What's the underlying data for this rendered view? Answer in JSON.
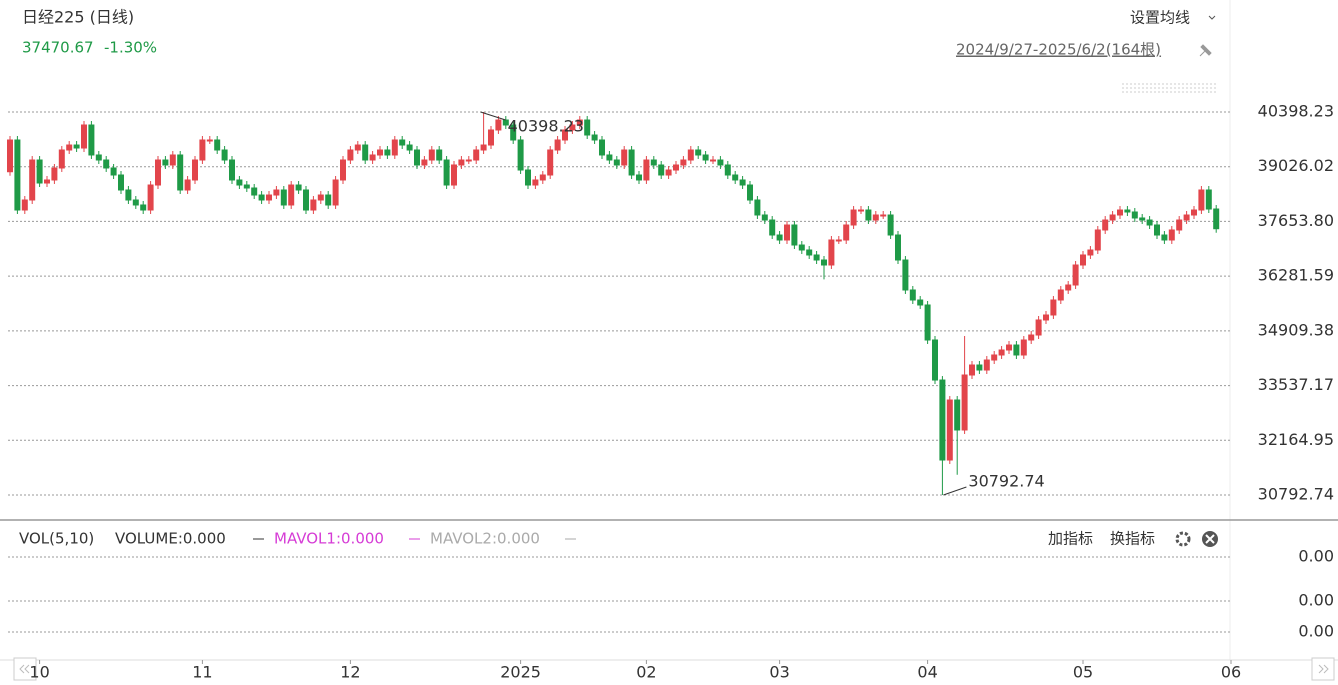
{
  "header": {
    "title": "日经225 (日线)",
    "price": "37470.67",
    "change": "-1.30%",
    "ma_button": "设置均线",
    "range": "2024/9/27-2025/6/2(164根)"
  },
  "chart_data": {
    "type": "candlestick",
    "up_color": "#e2454b",
    "down_color": "#1f9a47",
    "grid": true,
    "open": [
      38900,
      39696,
      37940,
      38191,
      39194,
      38617,
      38693,
      38994,
      39445,
      39570,
      39495,
      40072,
      39320,
      39194,
      38994,
      38818,
      38442,
      38191,
      38066,
      37940,
      38567,
      39194,
      39069,
      39320,
      38442,
      38693,
      39194,
      39696,
      39696,
      39445,
      39194,
      38693,
      38567,
      38492,
      38316,
      38191,
      38316,
      38442,
      38066,
      38567,
      38442,
      37940,
      38191,
      38316,
      38066,
      38693,
      39194,
      39445,
      39570,
      39194,
      39320,
      39445,
      39320,
      39696,
      39570,
      39445,
      39069,
      39194,
      39445,
      39194,
      38567,
      39069,
      39194,
      39194,
      39445,
      39570,
      39947,
      40197,
      40072,
      39696,
      38943,
      38567,
      38693,
      38818,
      39445,
      39696,
      39947,
      40072,
      40197,
      39821,
      39696,
      39320,
      39194,
      39069,
      39445,
      38818,
      38693,
      39194,
      39069,
      38818,
      38943,
      39069,
      39194,
      39445,
      39320,
      39194,
      39194,
      39069,
      38818,
      38693,
      38567,
      38191,
      37815,
      37689,
      37313,
      37188,
      37564,
      37062,
      36937,
      36812,
      36686,
      36561,
      37188,
      37188,
      37564,
      37940,
      37940,
      37689,
      37815,
      37815,
      37313,
      36686,
      35934,
      35683,
      35558,
      34680,
      33676,
      31670,
      33175,
      32423,
      33802,
      34053,
      33927,
      34178,
      34304,
      34429,
      34554,
      34304,
      34680,
      34805,
      35182,
      35307,
      35683,
      35934,
      36059,
      36561,
      36812,
      36937,
      37439,
      37689,
      37815,
      37940,
      37890,
      37740,
      37689,
      37564,
      37313,
      37188,
      37439,
      37689,
      37815,
      37940,
      38442,
      37965
    ],
    "high": [
      39796,
      39796,
      38291,
      39294,
      39294,
      38793,
      39094,
      39545,
      39670,
      39670,
      40172,
      40172,
      39420,
      39294,
      39094,
      38918,
      38542,
      38291,
      38166,
      38667,
      39294,
      39294,
      39420,
      39420,
      38793,
      39294,
      39796,
      39796,
      39796,
      39545,
      39294,
      38793,
      38667,
      38592,
      38416,
      38416,
      38542,
      38542,
      38667,
      38667,
      38542,
      38291,
      38416,
      38416,
      38793,
      39294,
      39545,
      39670,
      39670,
      39420,
      39545,
      39545,
      39796,
      39796,
      39670,
      39545,
      39294,
      39545,
      39545,
      39294,
      39169,
      39294,
      39294,
      39545,
      40398.23,
      40047,
      40297,
      40297,
      40172,
      39796,
      39043,
      38793,
      38918,
      39545,
      39796,
      40047,
      40172,
      40297,
      40297,
      39921,
      39796,
      39420,
      39294,
      39545,
      39545,
      38918,
      39294,
      39294,
      39169,
      39043,
      39169,
      39294,
      39545,
      39545,
      39420,
      39294,
      39294,
      39169,
      38918,
      38793,
      38667,
      38291,
      37915,
      37789,
      37413,
      37664,
      37664,
      37162,
      37037,
      36912,
      36786,
      37288,
      37288,
      37664,
      38040,
      38040,
      38040,
      37915,
      37915,
      37915,
      37413,
      36786,
      36034,
      35783,
      35658,
      34780,
      33776,
      33275,
      33275,
      34780,
      34153,
      34153,
      34278,
      34404,
      34529,
      34654,
      34654,
      34780,
      34905,
      35282,
      35407,
      35783,
      36034,
      36159,
      36661,
      36912,
      37037,
      37539,
      37789,
      37915,
      38040,
      38040,
      37990,
      37840,
      37789,
      37664,
      37413,
      37539,
      37789,
      37915,
      38040,
      38542,
      38542,
      38065
    ],
    "low": [
      38800,
      37840,
      37840,
      38091,
      38517,
      38517,
      38593,
      38894,
      39345,
      39395,
      39395,
      39220,
      39094,
      38894,
      38718,
      38342,
      38091,
      37966,
      37840,
      37840,
      38467,
      38969,
      38969,
      38342,
      38342,
      38593,
      39094,
      39596,
      39345,
      39094,
      38593,
      38467,
      38392,
      38216,
      38091,
      38091,
      38216,
      37966,
      37966,
      38342,
      37840,
      37840,
      38091,
      37966,
      37966,
      38593,
      39094,
      39345,
      39094,
      39094,
      39220,
      39220,
      39220,
      39470,
      39345,
      38969,
      38969,
      39094,
      39094,
      38467,
      38467,
      38969,
      39094,
      39094,
      39345,
      39470,
      39847,
      39972,
      39596,
      38843,
      38467,
      38467,
      38593,
      38718,
      39345,
      39596,
      39847,
      39972,
      39721,
      39596,
      39220,
      39094,
      38969,
      38969,
      38718,
      38593,
      38593,
      38969,
      38718,
      38718,
      38843,
      38969,
      39094,
      39220,
      39094,
      39094,
      38969,
      38718,
      38593,
      38467,
      38091,
      37715,
      37589,
      37213,
      37088,
      37088,
      36962,
      36837,
      36712,
      36586,
      36200,
      36461,
      37088,
      37088,
      37464,
      37840,
      37589,
      37589,
      37715,
      37213,
      36586,
      35834,
      35583,
      35458,
      34580,
      33576,
      30792.74,
      31570,
      31300,
      32323,
      33702,
      33827,
      33827,
      34078,
      34204,
      34329,
      34204,
      34204,
      34580,
      34705,
      35082,
      35207,
      35583,
      35834,
      35959,
      36461,
      36712,
      36837,
      37339,
      37589,
      37715,
      37790,
      37640,
      37589,
      37464,
      37213,
      37088,
      37088,
      37339,
      37589,
      37715,
      37840,
      37865,
      37370
    ],
    "close": [
      39696,
      37940,
      38191,
      39194,
      38617,
      38693,
      38994,
      39445,
      39570,
      39495,
      40072,
      39320,
      39194,
      38994,
      38818,
      38442,
      38191,
      38066,
      37940,
      38567,
      39194,
      39069,
      39320,
      38442,
      38693,
      39194,
      39696,
      39696,
      39445,
      39194,
      38693,
      38567,
      38492,
      38316,
      38191,
      38316,
      38442,
      38066,
      38567,
      38442,
      37940,
      38191,
      38316,
      38066,
      38693,
      39194,
      39445,
      39570,
      39194,
      39320,
      39445,
      39320,
      39696,
      39570,
      39445,
      39069,
      39194,
      39445,
      39194,
      38567,
      39069,
      39194,
      39194,
      39445,
      39570,
      39947,
      40197,
      40072,
      39696,
      38943,
      38567,
      38693,
      38818,
      39445,
      39696,
      39947,
      40072,
      40197,
      39821,
      39696,
      39320,
      39194,
      39069,
      39445,
      38818,
      38693,
      39194,
      39069,
      38818,
      38943,
      39069,
      39194,
      39445,
      39320,
      39194,
      39194,
      39069,
      38818,
      38693,
      38567,
      38191,
      37815,
      37689,
      37313,
      37188,
      37564,
      37062,
      36937,
      36812,
      36686,
      36561,
      37188,
      37188,
      37564,
      37940,
      37940,
      37689,
      37815,
      37815,
      37313,
      36686,
      35934,
      35683,
      35558,
      34680,
      33676,
      31670,
      33175,
      32423,
      33802,
      34053,
      33927,
      34178,
      34304,
      34429,
      34554,
      34304,
      34680,
      34805,
      35182,
      35307,
      35683,
      35934,
      36059,
      36561,
      36812,
      36937,
      37439,
      37689,
      37815,
      37940,
      37890,
      37740,
      37689,
      37564,
      37313,
      37188,
      37439,
      37689,
      37815,
      37940,
      38442,
      37965,
      37470.67
    ],
    "ylim": [
      30291,
      40699
    ],
    "yticks": [
      30792.74,
      32164.95,
      33537.17,
      34909.38,
      36281.59,
      {
        "value": 37653.8,
        "label": "37653.80"
      },
      39026.02,
      40398.23
    ],
    "xticks": [
      {
        "value": 4,
        "label": "10"
      },
      {
        "value": 26,
        "label": "11"
      },
      {
        "value": 46,
        "label": "12"
      },
      {
        "value": 69,
        "label": "2025"
      },
      {
        "value": 86,
        "label": "02"
      },
      {
        "value": 104,
        "label": "03"
      },
      {
        "value": 124,
        "label": "04"
      },
      {
        "value": 145,
        "label": "05"
      },
      {
        "value": 165,
        "label": "06"
      }
    ],
    "max_index": 64,
    "min_index": 126
  },
  "volume_panel": {
    "name": "VOL(5,10)",
    "volume": "VOLUME:0.000",
    "mavol1": "MAVOL1:0.000",
    "mavol2": "MAVOL2:0.000",
    "add_indicator": "加指标",
    "switch_indicator": "换指标",
    "axis_labels": [
      "0.00",
      "0.00",
      "0.00"
    ]
  }
}
